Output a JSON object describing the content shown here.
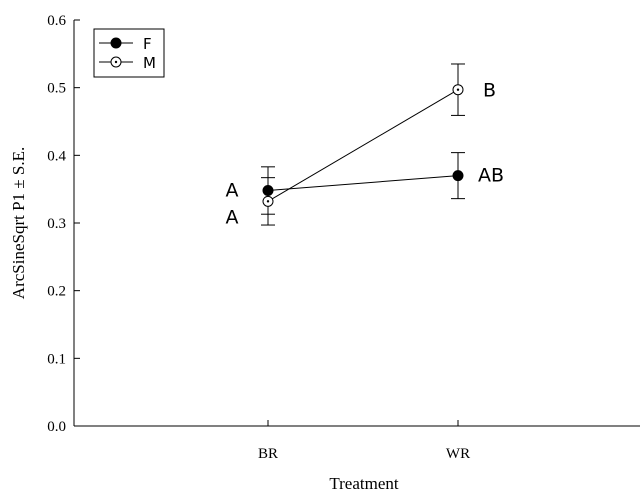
{
  "chart_data": {
    "type": "line",
    "title": "",
    "xlabel": "Treatment",
    "ylabel": "ArcSineSqrt P1 ± S.E.",
    "categories": [
      "BR",
      "WR"
    ],
    "ylim": [
      0,
      0.6
    ],
    "yticks": [
      "0.0",
      "0.1",
      "0.2",
      "0.3",
      "0.4",
      "0.5",
      "0.6"
    ],
    "grid": false,
    "legend": {
      "position": "top-left",
      "entries": [
        "F",
        "M"
      ]
    },
    "series": [
      {
        "name": "F",
        "marker": "filled-circle",
        "color": "#000000",
        "values": [
          0.348,
          0.37
        ],
        "se": [
          0.035,
          0.034
        ],
        "group_labels": [
          "A",
          "AB"
        ]
      },
      {
        "name": "M",
        "marker": "open-circle",
        "color": "#000000",
        "values": [
          0.332,
          0.497
        ],
        "se": [
          0.035,
          0.038
        ],
        "group_labels": [
          "A",
          "B"
        ]
      }
    ]
  }
}
